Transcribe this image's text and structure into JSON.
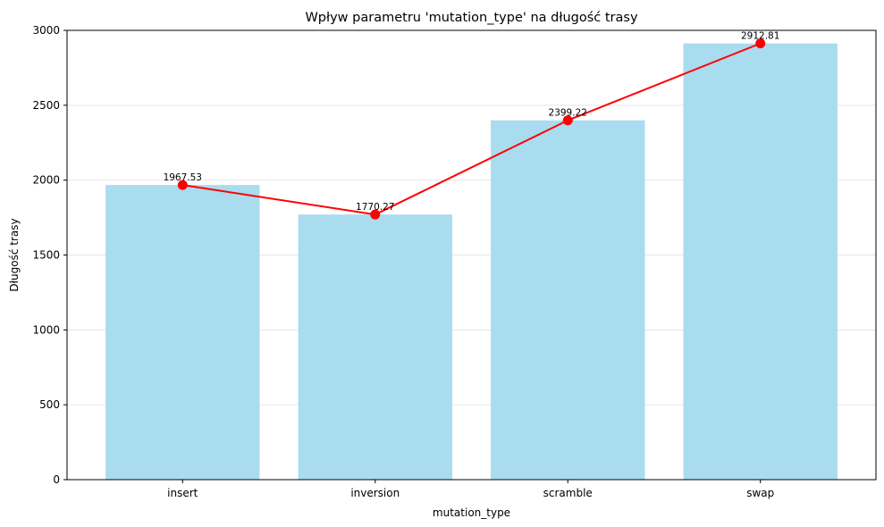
{
  "chart_data": {
    "type": "bar",
    "title": "Wpływ parametru 'mutation_type' na długość trasy",
    "xlabel": "mutation_type",
    "ylabel": "Długość trasy",
    "categories": [
      "insert",
      "inversion",
      "scramble",
      "swap"
    ],
    "values": [
      1967.53,
      1770.27,
      2399.22,
      2912.81
    ],
    "data_labels": [
      "1967.53",
      "1770.27",
      "2399.22",
      "2912.81"
    ],
    "ylim": [
      0,
      3000
    ],
    "yticks": [
      0,
      500,
      1000,
      1500,
      2000,
      2500,
      3000
    ],
    "ytick_labels": [
      "0",
      "500",
      "1000",
      "1500",
      "2000",
      "2500",
      "3000"
    ],
    "grid": "y-axis, light",
    "overlay": "line with markers connecting bar tops",
    "colors": {
      "bar": "#a9dcee",
      "line": "#ff0000",
      "grid": "#e6e6e6",
      "axis": "#000000"
    }
  }
}
